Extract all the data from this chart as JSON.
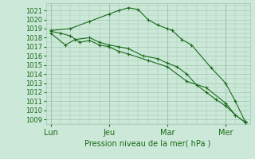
{
  "bg_color": "#cce8d8",
  "grid_color": "#a0c8b0",
  "line_color": "#1a6b1a",
  "xlabel": "Pression niveau de la mer( hPa )",
  "ylim": [
    1008.5,
    1021.8
  ],
  "yticks": [
    1009,
    1010,
    1011,
    1012,
    1013,
    1014,
    1015,
    1016,
    1017,
    1018,
    1019,
    1020,
    1021
  ],
  "xtick_labels": [
    "Lun",
    "Jeu",
    "Mar",
    "Mer"
  ],
  "xtick_positions": [
    0,
    24,
    48,
    72
  ],
  "xlim": [
    -2,
    82
  ],
  "series1_x": [
    0,
    8,
    16,
    24,
    28,
    32,
    36,
    40,
    44,
    48,
    50,
    54,
    58,
    66,
    72,
    76,
    80
  ],
  "series1_y": [
    1018.8,
    1019.0,
    1019.8,
    1020.6,
    1021.0,
    1021.3,
    1021.1,
    1020.0,
    1019.4,
    1019.0,
    1018.8,
    1017.8,
    1017.2,
    1014.7,
    1013.0,
    1011.0,
    1008.8
  ],
  "series2_x": [
    0,
    6,
    10,
    16,
    20,
    24,
    28,
    32,
    38,
    44,
    48,
    52,
    56,
    60,
    64,
    68,
    72,
    76,
    80
  ],
  "series2_y": [
    1018.5,
    1017.2,
    1017.8,
    1018.0,
    1017.5,
    1017.2,
    1017.0,
    1016.8,
    1016.0,
    1015.7,
    1015.2,
    1014.8,
    1014.0,
    1012.8,
    1012.0,
    1011.2,
    1010.5,
    1009.5,
    1008.7
  ],
  "series3_x": [
    0,
    4,
    8,
    12,
    16,
    20,
    24,
    28,
    32,
    40,
    48,
    56,
    64,
    72,
    76,
    80
  ],
  "series3_y": [
    1018.7,
    1018.5,
    1018.2,
    1017.5,
    1017.7,
    1017.2,
    1017.0,
    1016.5,
    1016.2,
    1015.5,
    1014.8,
    1013.2,
    1012.5,
    1010.8,
    1009.5,
    1008.7
  ]
}
